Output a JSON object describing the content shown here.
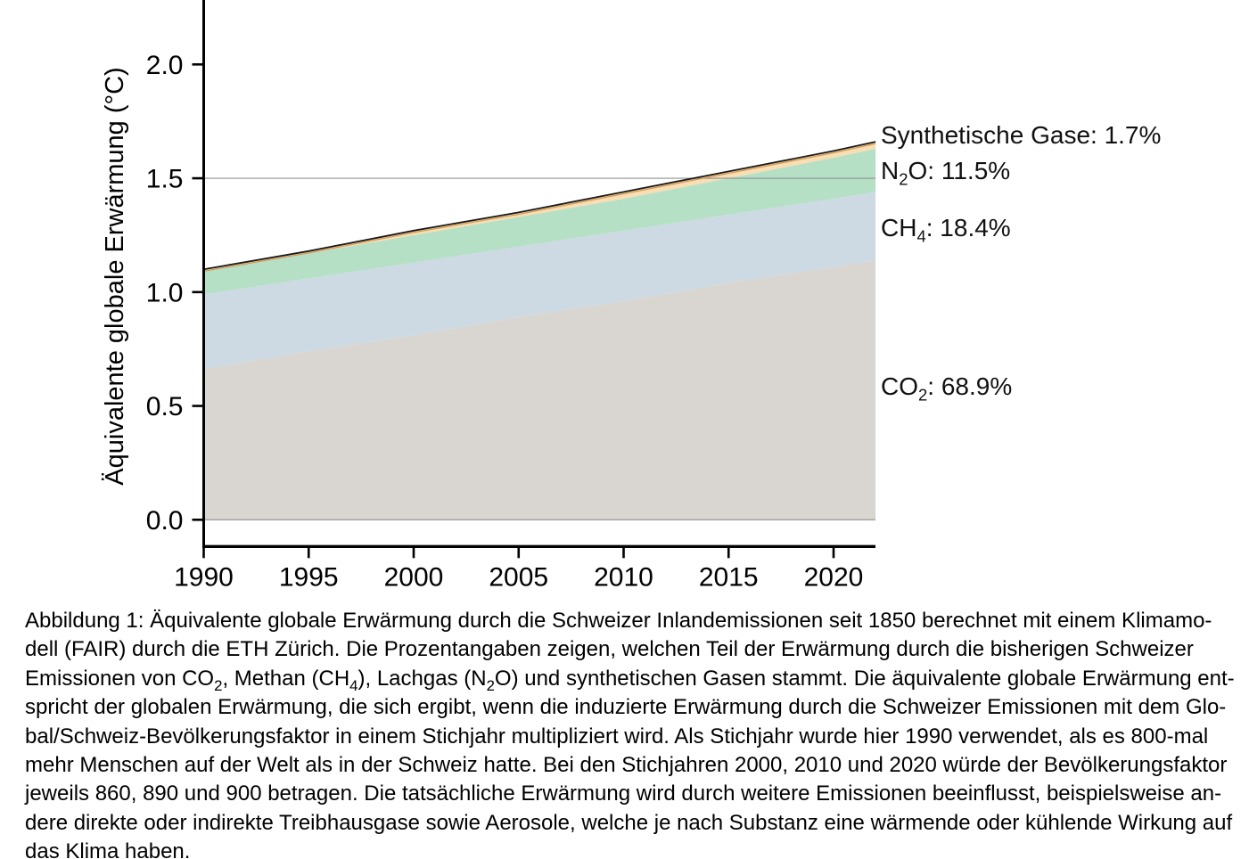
{
  "figure": {
    "caption_lines": [
      [
        {
          "t": "Abbildung 1: Äquivalente globale Erwärmung durch die Schweizer Inlandemissionen seit 1850 berechnet mit einem Klimamo-"
        }
      ],
      [
        {
          "t": "dell (FAIR) durch die ETH Zürich. Die Prozentangaben zeigen, welchen Teil der Erwärmung durch die bisherigen Schweizer"
        }
      ],
      [
        {
          "t": "Emissionen von CO"
        },
        {
          "sub": "2"
        },
        {
          "t": ", Methan (CH"
        },
        {
          "sub": "4"
        },
        {
          "t": "), Lachgas (N"
        },
        {
          "sub": "2"
        },
        {
          "t": "O) und synthetischen Gasen stammt. Die äquivalente globale Erwärmung ent-"
        }
      ],
      [
        {
          "t": "spricht der globalen Erwärmung, die sich ergibt, wenn die induzierte Erwärmung durch die Schweizer Emissionen mit dem Glo-"
        }
      ],
      [
        {
          "t": "bal/Schweiz-Bevölkerungsfaktor in einem Stichjahr multipliziert wird. Als Stichjahr wurde hier 1990 verwendet, als es 800-mal"
        }
      ],
      [
        {
          "t": "mehr Menschen auf der Welt als in der Schweiz hatte. Bei den Stichjahren 2000, 2010 und 2020 würde der Bevölkerungsfaktor"
        }
      ],
      [
        {
          "t": "jeweils 860, 890 und 900 betragen. Die tatsächliche Erwärmung wird durch weitere Emissionen beeinflusst, beispielsweise an-"
        }
      ],
      [
        {
          "t": "dere direkte oder indirekte Treibhausgase sowie Aerosole, welche je nach Substanz eine wärmende oder kühlende Wirkung auf"
        }
      ],
      [
        {
          "t": "das Klima haben."
        }
      ]
    ]
  },
  "chart_data": {
    "type": "area",
    "stacked": true,
    "title": "",
    "xlabel": "",
    "ylabel": "Äquivalente globale Erwärmung (°C)",
    "x": [
      1990,
      1995,
      2000,
      2005,
      2010,
      2015,
      2020,
      2022
    ],
    "series": [
      {
        "id": "co2",
        "name": "CO2",
        "percent": "68.9%",
        "color": "#d9d5d1",
        "values": [
          0.66,
          0.74,
          0.81,
          0.89,
          0.96,
          1.04,
          1.11,
          1.14
        ]
      },
      {
        "id": "ch4",
        "name": "CH4",
        "percent": "18.4%",
        "color": "#cddae3",
        "values": [
          0.33,
          0.32,
          0.32,
          0.31,
          0.31,
          0.3,
          0.3,
          0.3
        ]
      },
      {
        "id": "n2o",
        "name": "N2O",
        "percent": "11.5%",
        "color": "#b5e0c6",
        "values": [
          0.1,
          0.11,
          0.12,
          0.13,
          0.14,
          0.16,
          0.18,
          0.19
        ]
      },
      {
        "id": "syn",
        "name": "Synthetische Gase",
        "percent": "1.7%",
        "color": "#f8deb2",
        "values": [
          0.01,
          0.01,
          0.02,
          0.02,
          0.03,
          0.03,
          0.03,
          0.03
        ]
      }
    ],
    "cumulative_totals": [
      1.1,
      1.18,
      1.27,
      1.35,
      1.44,
      1.53,
      1.62,
      1.66
    ],
    "xlim": [
      1990,
      2022
    ],
    "ylim": [
      0.0,
      2.28
    ],
    "x_ticks": [
      1990,
      1995,
      2000,
      2005,
      2010,
      2015,
      2020
    ],
    "x_tick_labels": [
      "1990",
      "1995",
      "2000",
      "2005",
      "2010",
      "2015",
      "2020"
    ],
    "y_ticks": [
      0.0,
      0.5,
      1.0,
      1.5,
      2.0
    ],
    "y_tick_labels": [
      "0.0",
      "0.5",
      "1.0",
      "1.5",
      "2.0"
    ],
    "gridlines_y": [
      0.0,
      1.5
    ],
    "grid_color": "#919191",
    "axis_color": "#000000",
    "total_line_color": "#1a1a1a",
    "total_edge_color": "#d29a56",
    "legend_position": "right-annotations",
    "annotations": [
      {
        "id": "syn",
        "segments": [
          {
            "t": "Synthetische Gase: 1.7%"
          }
        ]
      },
      {
        "id": "n2o",
        "segments": [
          {
            "t": "N"
          },
          {
            "sub": "2"
          },
          {
            "t": "O: 11.5%"
          }
        ]
      },
      {
        "id": "ch4",
        "segments": [
          {
            "t": "CH"
          },
          {
            "sub": "4"
          },
          {
            "t": ": 18.4%"
          }
        ]
      },
      {
        "id": "co2",
        "segments": [
          {
            "t": "CO"
          },
          {
            "sub": "2"
          },
          {
            "t": ": 68.9%"
          }
        ]
      }
    ]
  }
}
